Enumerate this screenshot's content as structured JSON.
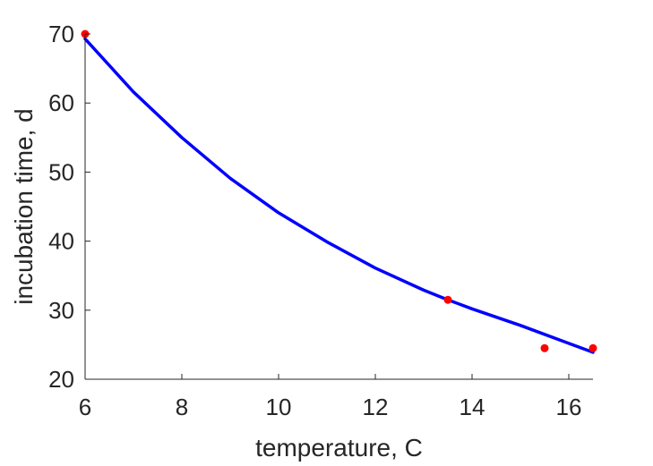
{
  "chart_data": {
    "type": "scatter",
    "xlabel": "temperature, C",
    "ylabel": "incubation time, d",
    "xlim": [
      6,
      16.5
    ],
    "ylim": [
      20,
      70
    ],
    "xticks": [
      6,
      8,
      10,
      12,
      14,
      16
    ],
    "yticks": [
      20,
      30,
      40,
      50,
      60,
      70
    ],
    "grid": false,
    "box": false,
    "series": [
      {
        "kind": "scatter",
        "color": "#ff0000",
        "x": [
          6,
          13.5,
          15.5,
          16.5
        ],
        "y": [
          70,
          31.5,
          24.5,
          24.5
        ]
      },
      {
        "kind": "line",
        "color": "#0000ff",
        "x": [
          6,
          7,
          8,
          9,
          10,
          11,
          12,
          13,
          13.5,
          14,
          15,
          16,
          16.5
        ],
        "y": [
          69.3,
          61.6,
          55.0,
          49.1,
          44.1,
          39.9,
          36.1,
          32.9,
          31.5,
          30.2,
          27.8,
          25.2,
          23.9
        ]
      }
    ]
  }
}
